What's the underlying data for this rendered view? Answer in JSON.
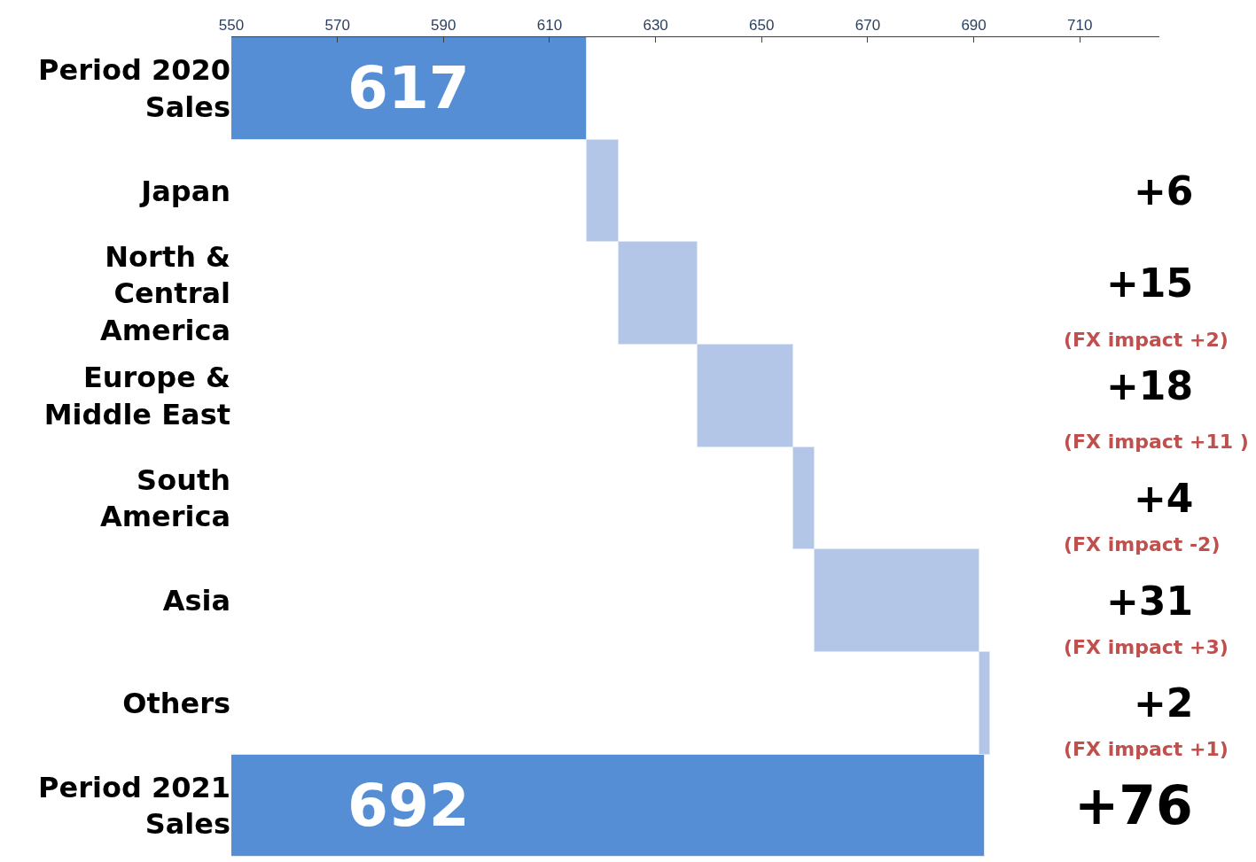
{
  "chart_data": {
    "type": "bar",
    "orientation": "horizontal",
    "categories": [
      "Period 2020\nSales",
      "Japan",
      "North &\nCentral\nAmerica",
      "Europe &\nMiddle East",
      "South\nAmerica",
      "Asia",
      "Others",
      "Period 2021\nSales"
    ],
    "values": [
      617,
      6,
      15,
      18,
      4,
      31,
      2,
      692
    ],
    "base": [
      0,
      617,
      623,
      638,
      656,
      660,
      691,
      0
    ],
    "colors": [
      "#558ed5",
      "#b3c6e7",
      "#b3c6e7",
      "#b3c6e7",
      "#b3c6e7",
      "#b3c6e7",
      "#b3c6e7",
      "#558ed5"
    ],
    "value_labels": [
      "617",
      null,
      null,
      null,
      null,
      null,
      null,
      "692"
    ],
    "xlim": [
      550,
      725
    ],
    "xticks": [
      550,
      570,
      590,
      610,
      630,
      650,
      670,
      690,
      710
    ],
    "annotations": [
      "+6",
      "+15",
      "+18",
      "+4",
      "+31",
      "+2",
      "+76",
      "(FX impact +2)",
      "(FX impact +11 )",
      "(FX impact -2)",
      "(FX impact +3)",
      "(FX impact +1)"
    ],
    "legend": false
  }
}
